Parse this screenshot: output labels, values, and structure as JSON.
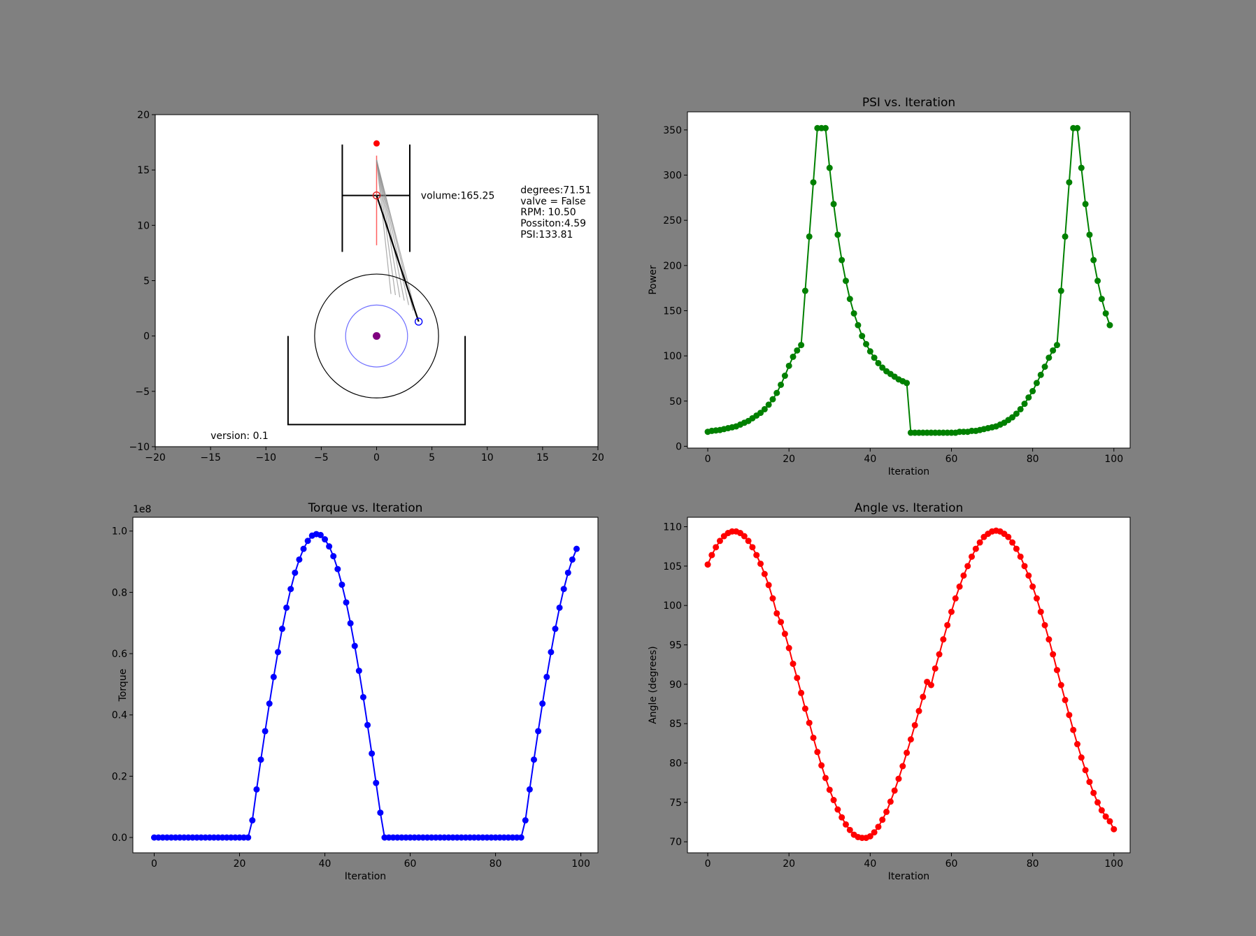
{
  "colors": {
    "figure_bg": "#808080",
    "axes_bg": "#ffffff",
    "psi": "#008000",
    "torque": "#0000ff",
    "angle": "#ff0000",
    "crank_circle": "#6f6fff",
    "pivot": "#800080",
    "cylinder_axis": "#ff6060",
    "rod_trail": "#909090"
  },
  "chart_data": [
    {
      "id": "engine",
      "type": "scatter",
      "title": "",
      "xlabel": "",
      "ylabel": "",
      "xlim": [
        -20,
        20
      ],
      "ylim": [
        -10,
        20
      ],
      "x_ticks": [
        -20,
        -15,
        -10,
        -5,
        0,
        5,
        10,
        15,
        20
      ],
      "y_ticks": [
        -10,
        -5,
        0,
        5,
        10,
        15,
        20
      ],
      "x_tick_labels": [
        "−20",
        "−15",
        "−10",
        "−5",
        "0",
        "5",
        "10",
        "15",
        "20"
      ],
      "y_tick_labels": [
        "−10",
        "−5",
        "0",
        "5",
        "10",
        "15",
        "20"
      ],
      "annotations": {
        "volume": "volume:165.25",
        "degrees": "degrees:71.51",
        "valve": "valve = False",
        "rpm": "RPM: 10.50",
        "position": "Possiton:4.59",
        "psi": "PSI:133.81",
        "version": "version: 0.1"
      },
      "red_point": [
        0,
        17.4
      ],
      "piston_pin": [
        0,
        12.7
      ],
      "crank_pin": [
        3.8,
        1.3
      ],
      "pivot": [
        0,
        0
      ],
      "outer_radius": 5.6,
      "crank_radius": 2.8,
      "cylinder": {
        "x_left": -3.1,
        "x_right": 3.0,
        "y_bottom": 7.6,
        "y_top": 17.3,
        "piston_y": 12.7
      },
      "cylinder_axis": {
        "x": 0,
        "y_from": 8.2,
        "y_to": 16.3
      },
      "frame": {
        "x_left": -8.0,
        "x_right": 8.0,
        "y_top": 0,
        "y_bottom": -8.0
      },
      "rod_trail_ends": [
        [
          1.3,
          3.8
        ],
        [
          1.7,
          3.7
        ],
        [
          2.1,
          3.5
        ],
        [
          2.5,
          3.2
        ],
        [
          2.9,
          2.8
        ],
        [
          3.3,
          2.3
        ],
        [
          3.6,
          1.8
        ]
      ]
    },
    {
      "id": "psi",
      "type": "line",
      "title": "PSI vs. Iteration",
      "xlabel": "Iteration",
      "ylabel": "Power",
      "xlim": [
        -5,
        104
      ],
      "ylim": [
        -2,
        370
      ],
      "x_ticks": [
        0,
        20,
        40,
        60,
        80,
        100
      ],
      "y_ticks": [
        0,
        50,
        100,
        150,
        200,
        250,
        300,
        350
      ],
      "x_tick_labels": [
        "0",
        "20",
        "40",
        "60",
        "80",
        "100"
      ],
      "y_tick_labels": [
        "0",
        "50",
        "100",
        "150",
        "200",
        "250",
        "300",
        "350"
      ],
      "values": [
        16,
        17,
        17.5,
        18,
        19,
        20,
        21,
        22,
        24,
        26,
        28,
        31,
        34,
        37,
        41,
        46,
        52,
        59,
        68,
        78,
        89,
        99,
        106,
        112,
        172,
        232,
        292,
        352,
        352,
        352,
        308,
        268,
        234,
        206,
        183,
        163,
        147,
        134,
        122,
        113,
        105,
        98,
        92,
        87,
        83,
        80,
        77,
        74,
        72,
        70,
        15,
        15,
        15,
        15,
        15,
        15,
        15,
        15,
        15,
        15,
        15,
        15,
        16,
        16,
        16,
        17,
        17,
        18,
        19,
        20,
        21,
        22,
        24,
        26,
        29,
        32,
        36,
        41,
        47,
        54,
        61,
        70,
        79,
        88,
        98,
        106,
        112,
        172,
        232,
        292,
        352,
        352,
        308,
        268,
        234,
        206,
        183,
        163,
        147,
        134
      ]
    },
    {
      "id": "torque",
      "type": "line",
      "title": "Torque vs. Iteration",
      "xlabel": "Iteration",
      "ylabel": "Torque",
      "offset_label": "1e8",
      "xlim": [
        -5,
        104
      ],
      "ylim": [
        -0.05,
        1.045
      ],
      "x_ticks": [
        0,
        20,
        40,
        60,
        80,
        100
      ],
      "y_ticks": [
        0,
        0.2,
        0.4,
        0.6,
        0.8,
        1.0
      ],
      "x_tick_labels": [
        "0",
        "20",
        "40",
        "60",
        "80",
        "100"
      ],
      "y_tick_labels": [
        "0.0",
        "0.2",
        "0.4",
        "0.6",
        "0.8",
        "1.0"
      ],
      "values": [
        0,
        0,
        0,
        0,
        0,
        0,
        0,
        0,
        0,
        0,
        0,
        0,
        0,
        0,
        0,
        0,
        0,
        0,
        0,
        0,
        0,
        0,
        0,
        0.056,
        0.157,
        0.254,
        0.347,
        0.437,
        0.524,
        0.605,
        0.681,
        0.75,
        0.811,
        0.864,
        0.907,
        0.942,
        0.968,
        0.985,
        0.99,
        0.987,
        0.973,
        0.95,
        0.918,
        0.876,
        0.825,
        0.767,
        0.699,
        0.625,
        0.544,
        0.458,
        0.367,
        0.274,
        0.178,
        0.081,
        0,
        0,
        0,
        0,
        0,
        0,
        0,
        0,
        0,
        0,
        0,
        0,
        0,
        0,
        0,
        0,
        0,
        0,
        0,
        0,
        0,
        0,
        0,
        0,
        0,
        0,
        0,
        0,
        0,
        0,
        0,
        0,
        0,
        0.056,
        0.157,
        0.254,
        0.347,
        0.437,
        0.524,
        0.605,
        0.681,
        0.75,
        0.811,
        0.864,
        0.907,
        0.942
      ]
    },
    {
      "id": "angle",
      "type": "line",
      "title": "Angle vs. Iteration",
      "xlabel": "Iteration",
      "ylabel": "Angle (degrees)",
      "xlim": [
        -5,
        104
      ],
      "ylim": [
        68.6,
        111.2
      ],
      "x_ticks": [
        0,
        20,
        40,
        60,
        80,
        100
      ],
      "y_ticks": [
        70,
        75,
        80,
        85,
        90,
        95,
        100,
        105,
        110
      ],
      "x_tick_labels": [
        "0",
        "20",
        "40",
        "60",
        "80",
        "100"
      ],
      "y_tick_labels": [
        "70",
        "75",
        "80",
        "85",
        "90",
        "95",
        "100",
        "105",
        "110"
      ],
      "values": [
        105.2,
        106.4,
        107.4,
        108.2,
        108.8,
        109.2,
        109.4,
        109.4,
        109.2,
        108.8,
        108.2,
        107.4,
        106.4,
        105.3,
        104.0,
        102.6,
        100.9,
        99.0,
        97.9,
        96.4,
        94.6,
        92.6,
        90.8,
        88.9,
        86.9,
        85.1,
        83.2,
        81.4,
        79.7,
        78.1,
        76.6,
        75.3,
        74.1,
        73.1,
        72.2,
        71.5,
        70.9,
        70.6,
        70.5,
        70.5,
        70.7,
        71.2,
        71.9,
        72.8,
        73.8,
        75.1,
        76.5,
        78.0,
        79.6,
        81.3,
        83.0,
        84.8,
        86.6,
        88.4,
        90.3,
        89.9,
        92.0,
        93.8,
        95.7,
        97.5,
        99.2,
        100.9,
        102.4,
        103.8,
        105.0,
        106.2,
        107.2,
        108.0,
        108.7,
        109.1,
        109.4,
        109.5,
        109.4,
        109.1,
        108.7,
        108.0,
        107.2,
        106.2,
        105.0,
        103.8,
        102.4,
        100.9,
        99.2,
        97.5,
        95.7,
        93.8,
        91.8,
        89.9,
        88.0,
        86.1,
        84.2,
        82.4,
        80.7,
        79.1,
        77.6,
        76.2,
        75.0,
        74.0,
        73.2,
        72.6,
        71.6
      ]
    }
  ]
}
